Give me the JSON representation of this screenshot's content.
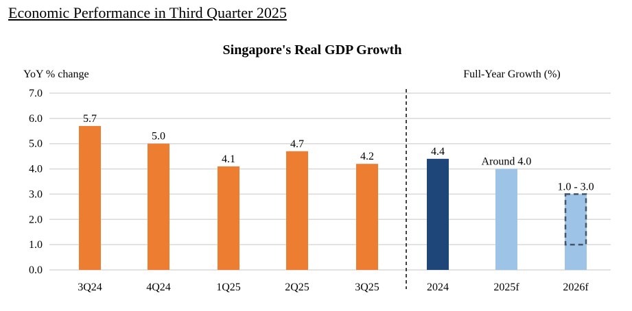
{
  "page_title": "Economic Performance in Third Quarter 2025",
  "chart_data": {
    "type": "bar",
    "title": "Singapore's Real GDP Growth",
    "ylabel": "YoY % change",
    "right_section_label": "Full-Year Growth (%)",
    "ylim": [
      0,
      7
    ],
    "yticks": [
      "0.0",
      "1.0",
      "2.0",
      "3.0",
      "4.0",
      "5.0",
      "6.0",
      "7.0"
    ],
    "grid": true,
    "categories": [
      "3Q24",
      "4Q24",
      "1Q25",
      "2Q25",
      "3Q25",
      "2024",
      "2025f",
      "2026f"
    ],
    "values": [
      5.7,
      5.0,
      4.1,
      4.7,
      4.2,
      4.4,
      4.0,
      3.0
    ],
    "range_low": [
      null,
      null,
      null,
      null,
      null,
      null,
      null,
      1.0
    ],
    "labels": [
      "5.7",
      "5.0",
      "4.1",
      "4.7",
      "4.2",
      "4.4",
      "Around 4.0",
      "1.0 - 3.0"
    ],
    "colors": [
      "#ED7D31",
      "#ED7D31",
      "#ED7D31",
      "#ED7D31",
      "#ED7D31",
      "#1F4678",
      "#9DC3E6",
      "#9DC3E6"
    ],
    "range_border_color": "#44546A",
    "gridline_color": "#D9D9D9"
  }
}
